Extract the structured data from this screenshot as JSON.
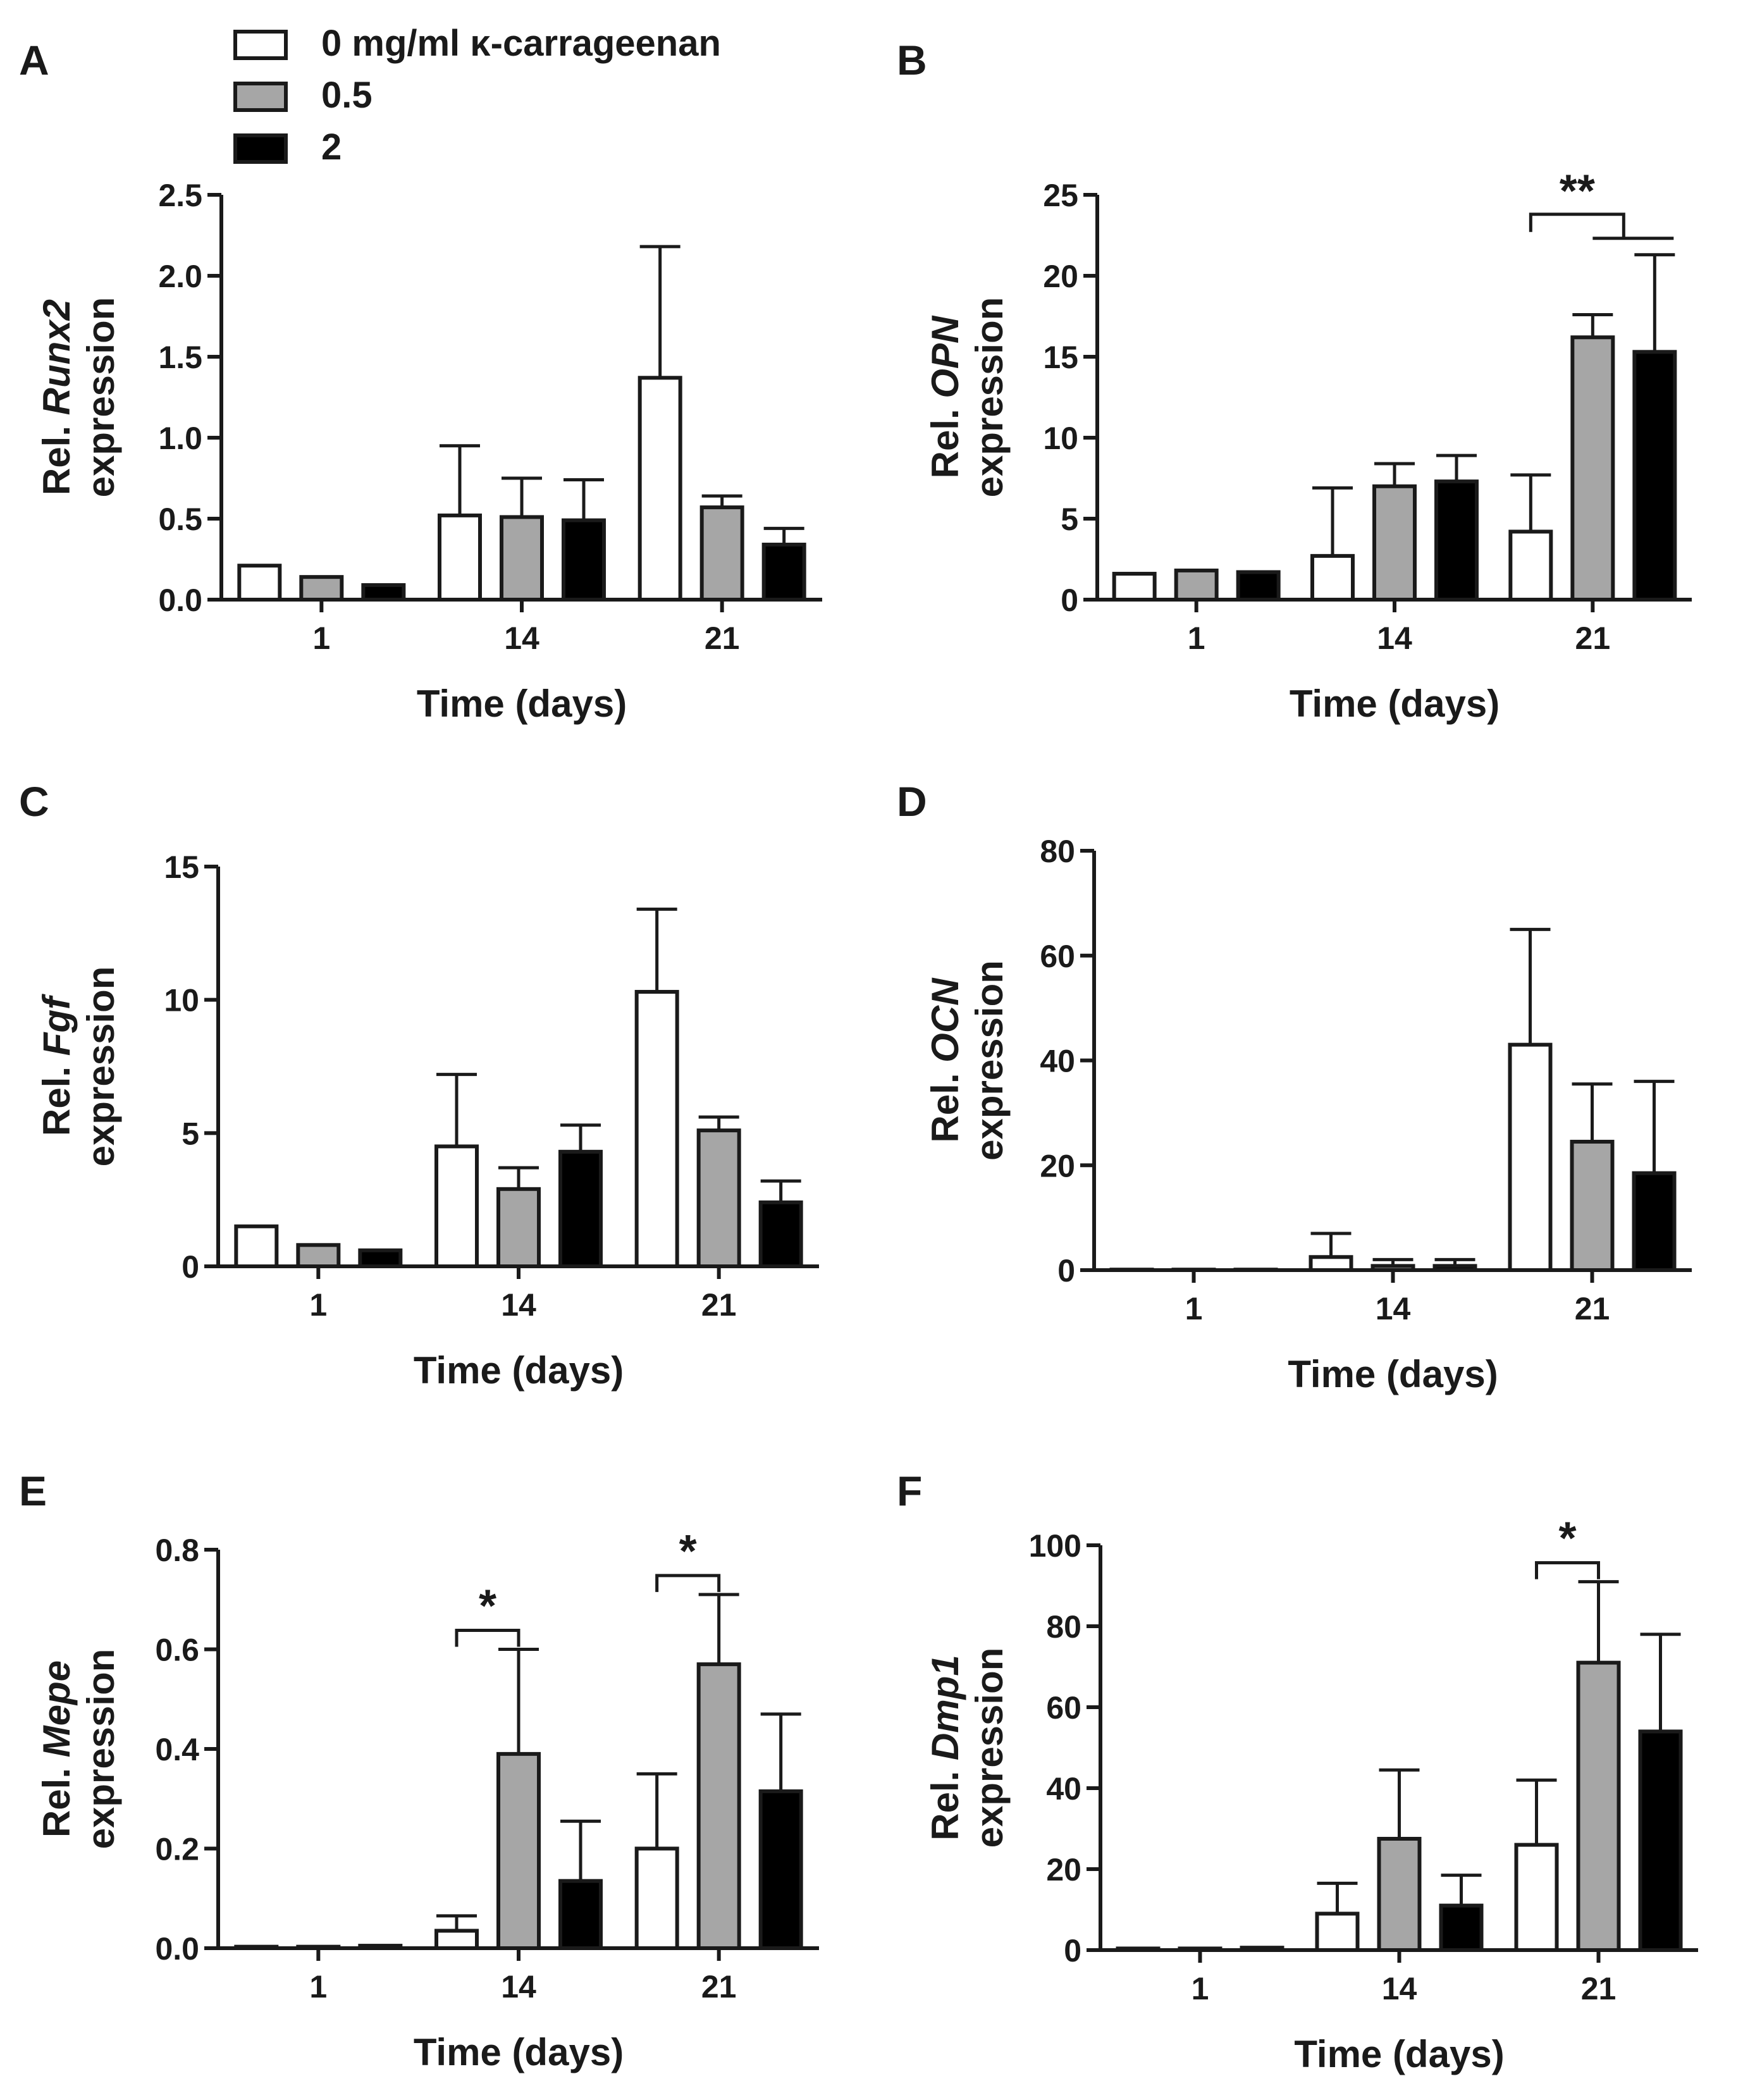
{
  "legend": {
    "entries": [
      {
        "label": "0 mg/ml κ-carrageenan",
        "color": "#ffffff"
      },
      {
        "label": "0.5",
        "color": "#a6a6a6"
      },
      {
        "label": "2",
        "color": "#000000"
      }
    ]
  },
  "chart_data": [
    {
      "type": "bar",
      "panel": "A",
      "ylabel_prefix": "Rel. ",
      "ylabel_gene": "Runx2",
      "ylabel_line2": "expression",
      "xlabel": "Time (days)",
      "categories": [
        "1",
        "14",
        "21"
      ],
      "ylim": [
        0,
        2.5
      ],
      "yticks": [
        "0.0",
        "0.5",
        "1.0",
        "1.5",
        "2.0",
        "2.5"
      ],
      "series": [
        {
          "name": "0 mg/ml κ-carrageenan",
          "values": [
            0.21,
            0.52,
            1.37
          ],
          "errors": [
            0,
            0.43,
            0.81
          ]
        },
        {
          "name": "0.5",
          "values": [
            0.14,
            0.51,
            0.57
          ],
          "errors": [
            0,
            0.24,
            0.07
          ]
        },
        {
          "name": "2",
          "values": [
            0.09,
            0.49,
            0.34
          ],
          "errors": [
            0,
            0.25,
            0.1
          ]
        }
      ],
      "significance": []
    },
    {
      "type": "bar",
      "panel": "B",
      "ylabel_prefix": "Rel. ",
      "ylabel_gene": "OPN",
      "ylabel_line2": "expression",
      "xlabel": "Time (days)",
      "categories": [
        "1",
        "14",
        "21"
      ],
      "ylim": [
        0,
        25
      ],
      "yticks": [
        "0",
        "5",
        "10",
        "15",
        "20",
        "25"
      ],
      "series": [
        {
          "name": "0 mg/ml κ-carrageenan",
          "values": [
            1.6,
            2.7,
            4.2
          ],
          "errors": [
            0,
            4.2,
            3.5
          ]
        },
        {
          "name": "0.5",
          "values": [
            1.8,
            7.0,
            16.2
          ],
          "errors": [
            0,
            1.4,
            1.4
          ]
        },
        {
          "name": "2",
          "values": [
            1.7,
            7.3,
            15.3
          ],
          "errors": [
            0,
            1.6,
            6.0
          ]
        }
      ],
      "significance": [
        {
          "label": "**",
          "group": 2,
          "type": "double"
        }
      ]
    },
    {
      "type": "bar",
      "panel": "C",
      "ylabel_prefix": "Rel. ",
      "ylabel_gene": "Fgf",
      "ylabel_line2": "expression",
      "xlabel": "Time (days)",
      "categories": [
        "1",
        "14",
        "21"
      ],
      "ylim": [
        0,
        15
      ],
      "yticks": [
        "0",
        "5",
        "10",
        "15"
      ],
      "series": [
        {
          "name": "0 mg/ml κ-carrageenan",
          "values": [
            1.5,
            4.5,
            10.3
          ],
          "errors": [
            0,
            2.7,
            3.1
          ]
        },
        {
          "name": "0.5",
          "values": [
            0.8,
            2.9,
            5.1
          ],
          "errors": [
            0,
            0.8,
            0.5
          ]
        },
        {
          "name": "2",
          "values": [
            0.6,
            4.3,
            2.4
          ],
          "errors": [
            0,
            1.0,
            0.8
          ]
        }
      ],
      "significance": []
    },
    {
      "type": "bar",
      "panel": "D",
      "ylabel_prefix": "Rel. ",
      "ylabel_gene": "OCN",
      "ylabel_line2": "expression",
      "xlabel": "Time (days)",
      "categories": [
        "1",
        "14",
        "21"
      ],
      "ylim": [
        0,
        80
      ],
      "yticks": [
        "0",
        "20",
        "40",
        "60",
        "80"
      ],
      "series": [
        {
          "name": "0 mg/ml κ-carrageenan",
          "values": [
            0.1,
            2.5,
            43
          ],
          "errors": [
            0,
            4.5,
            22
          ]
        },
        {
          "name": "0.5",
          "values": [
            0.1,
            0.8,
            24.5
          ],
          "errors": [
            0,
            1.2,
            11
          ]
        },
        {
          "name": "2",
          "values": [
            0.1,
            0.8,
            18.5
          ],
          "errors": [
            0,
            1.2,
            17.5
          ]
        }
      ],
      "significance": []
    },
    {
      "type": "bar",
      "panel": "E",
      "ylabel_prefix": "Rel. ",
      "ylabel_gene": "Mepe",
      "ylabel_line2": "expression",
      "xlabel": "Time (days)",
      "categories": [
        "1",
        "14",
        "21"
      ],
      "ylim": [
        0,
        0.8
      ],
      "yticks": [
        "0.0",
        "0.2",
        "0.4",
        "0.6",
        "0.8"
      ],
      "series": [
        {
          "name": "0 mg/ml κ-carrageenan",
          "values": [
            0.003,
            0.035,
            0.2
          ],
          "errors": [
            0,
            0.03,
            0.15
          ]
        },
        {
          "name": "0.5",
          "values": [
            0.003,
            0.39,
            0.57
          ],
          "errors": [
            0,
            0.21,
            0.14
          ]
        },
        {
          "name": "2",
          "values": [
            0.005,
            0.135,
            0.315
          ],
          "errors": [
            0,
            0.12,
            0.155
          ]
        }
      ],
      "significance": [
        {
          "label": "*",
          "group": 1,
          "type": "single"
        },
        {
          "label": "*",
          "group": 2,
          "type": "single"
        }
      ]
    },
    {
      "type": "bar",
      "panel": "F",
      "ylabel_prefix": "Rel. ",
      "ylabel_gene": "Dmp1",
      "ylabel_line2": "expression",
      "xlabel": "Time (days)",
      "categories": [
        "1",
        "14",
        "21"
      ],
      "ylim": [
        0,
        100
      ],
      "yticks": [
        "0",
        "20",
        "40",
        "60",
        "80",
        "100"
      ],
      "series": [
        {
          "name": "0 mg/ml κ-carrageenan",
          "values": [
            0.4,
            9,
            26
          ],
          "errors": [
            0,
            7.5,
            16
          ]
        },
        {
          "name": "0.5",
          "values": [
            0.4,
            27.5,
            71
          ],
          "errors": [
            0,
            17,
            20
          ]
        },
        {
          "name": "2",
          "values": [
            0.6,
            11,
            54
          ],
          "errors": [
            0,
            7.5,
            24
          ]
        }
      ],
      "significance": [
        {
          "label": "*",
          "group": 2,
          "type": "single"
        }
      ]
    }
  ]
}
